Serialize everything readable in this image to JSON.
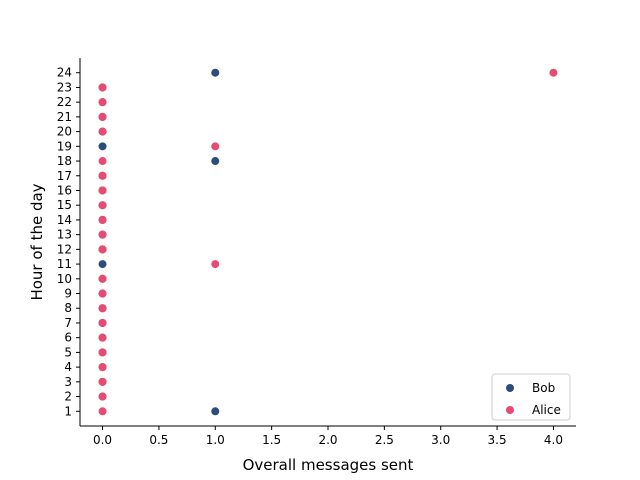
{
  "chart_data": {
    "type": "scatter",
    "title": "",
    "xlabel": "Overall messages sent",
    "ylabel": "Hour of the day",
    "xlim": [
      -0.2,
      4.2
    ],
    "ylim": [
      0,
      25
    ],
    "xticks": [
      0.0,
      0.5,
      1.0,
      1.5,
      2.0,
      2.5,
      3.0,
      3.5,
      4.0
    ],
    "xtick_labels": [
      "0.0",
      "0.5",
      "1.0",
      "1.5",
      "2.0",
      "2.5",
      "3.0",
      "3.5",
      "4.0"
    ],
    "yticks": [
      1,
      2,
      3,
      4,
      5,
      6,
      7,
      8,
      9,
      10,
      11,
      12,
      13,
      14,
      15,
      16,
      17,
      18,
      19,
      20,
      21,
      22,
      23,
      24
    ],
    "ytick_labels": [
      "1",
      "2",
      "3",
      "4",
      "5",
      "6",
      "7",
      "8",
      "9",
      "10",
      "11",
      "12",
      "13",
      "14",
      "15",
      "16",
      "17",
      "18",
      "19",
      "20",
      "21",
      "22",
      "23",
      "24"
    ],
    "grid": false,
    "legend_position": "bottom-right",
    "series": [
      {
        "name": "Bob",
        "color": "#2a4d7a",
        "points": [
          {
            "x": 1,
            "y": 1
          },
          {
            "x": 0,
            "y": 2
          },
          {
            "x": 0,
            "y": 3
          },
          {
            "x": 0,
            "y": 4
          },
          {
            "x": 0,
            "y": 5
          },
          {
            "x": 0,
            "y": 6
          },
          {
            "x": 0,
            "y": 7
          },
          {
            "x": 0,
            "y": 8
          },
          {
            "x": 0,
            "y": 9
          },
          {
            "x": 0,
            "y": 10
          },
          {
            "x": 0,
            "y": 11
          },
          {
            "x": 0,
            "y": 12
          },
          {
            "x": 0,
            "y": 13
          },
          {
            "x": 0,
            "y": 14
          },
          {
            "x": 0,
            "y": 15
          },
          {
            "x": 0,
            "y": 16
          },
          {
            "x": 0,
            "y": 17
          },
          {
            "x": 1,
            "y": 18
          },
          {
            "x": 0,
            "y": 19
          },
          {
            "x": 0,
            "y": 20
          },
          {
            "x": 0,
            "y": 21
          },
          {
            "x": 0,
            "y": 22
          },
          {
            "x": 0,
            "y": 23
          },
          {
            "x": 1,
            "y": 24
          }
        ]
      },
      {
        "name": "Alice",
        "color": "#e84a72",
        "points": [
          {
            "x": 0,
            "y": 1
          },
          {
            "x": 0,
            "y": 2
          },
          {
            "x": 0,
            "y": 3
          },
          {
            "x": 0,
            "y": 4
          },
          {
            "x": 0,
            "y": 5
          },
          {
            "x": 0,
            "y": 6
          },
          {
            "x": 0,
            "y": 7
          },
          {
            "x": 0,
            "y": 8
          },
          {
            "x": 0,
            "y": 9
          },
          {
            "x": 0,
            "y": 10
          },
          {
            "x": 1,
            "y": 11
          },
          {
            "x": 0,
            "y": 12
          },
          {
            "x": 0,
            "y": 13
          },
          {
            "x": 0,
            "y": 14
          },
          {
            "x": 0,
            "y": 15
          },
          {
            "x": 0,
            "y": 16
          },
          {
            "x": 0,
            "y": 17
          },
          {
            "x": 0,
            "y": 18
          },
          {
            "x": 1,
            "y": 19
          },
          {
            "x": 0,
            "y": 20
          },
          {
            "x": 0,
            "y": 21
          },
          {
            "x": 0,
            "y": 22
          },
          {
            "x": 0,
            "y": 23
          },
          {
            "x": 4,
            "y": 24
          }
        ]
      }
    ]
  }
}
